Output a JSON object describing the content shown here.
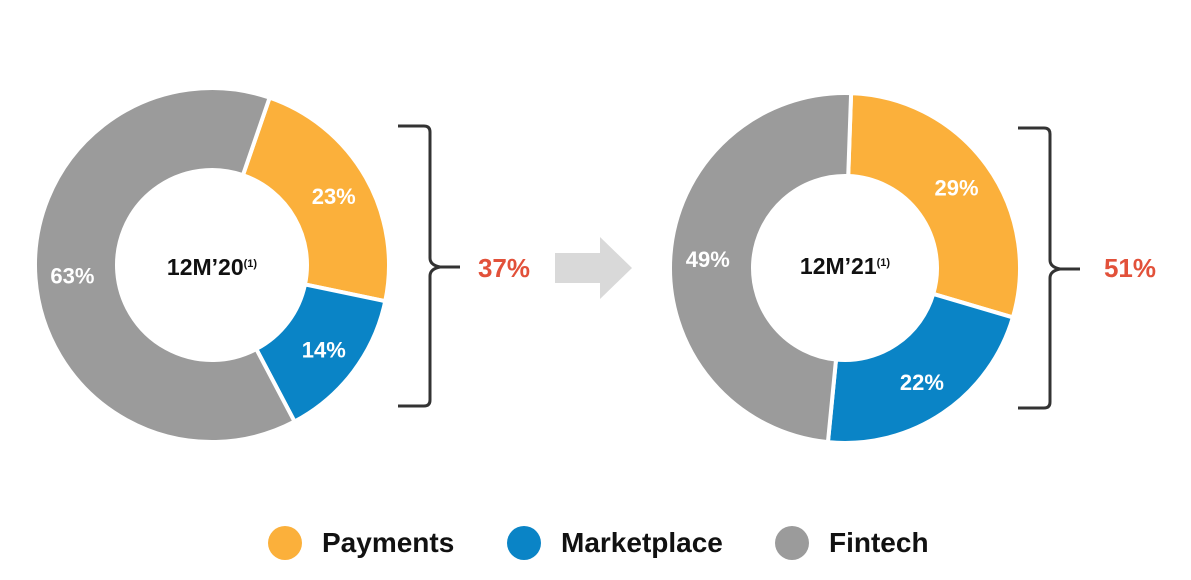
{
  "colors": {
    "Payments": "#fbb03b",
    "Marketplace": "#0a84c6",
    "Fintech": "#9b9b9b",
    "highlight": "#e2513a"
  },
  "chart_data": [
    {
      "type": "pie",
      "donut": true,
      "center_label": "12M’20",
      "center_sup": "(1)",
      "categories": [
        "Payments",
        "Marketplace",
        "Fintech"
      ],
      "values": [
        23,
        14,
        63
      ],
      "labels": [
        "23%",
        "14%",
        "63%"
      ],
      "bracket_total": "37%"
    },
    {
      "type": "pie",
      "donut": true,
      "center_label": "12M’21",
      "center_sup": "(1)",
      "categories": [
        "Payments",
        "Marketplace",
        "Fintech"
      ],
      "values": [
        29,
        22,
        49
      ],
      "labels": [
        "29%",
        "22%",
        "49%"
      ],
      "bracket_total": "51%"
    }
  ],
  "legend": {
    "placement": "bottom",
    "items": [
      {
        "label": "Payments",
        "color": "#fbb03b"
      },
      {
        "label": "Marketplace",
        "color": "#0a84c6"
      },
      {
        "label": "Fintech",
        "color": "#9b9b9b"
      }
    ]
  }
}
